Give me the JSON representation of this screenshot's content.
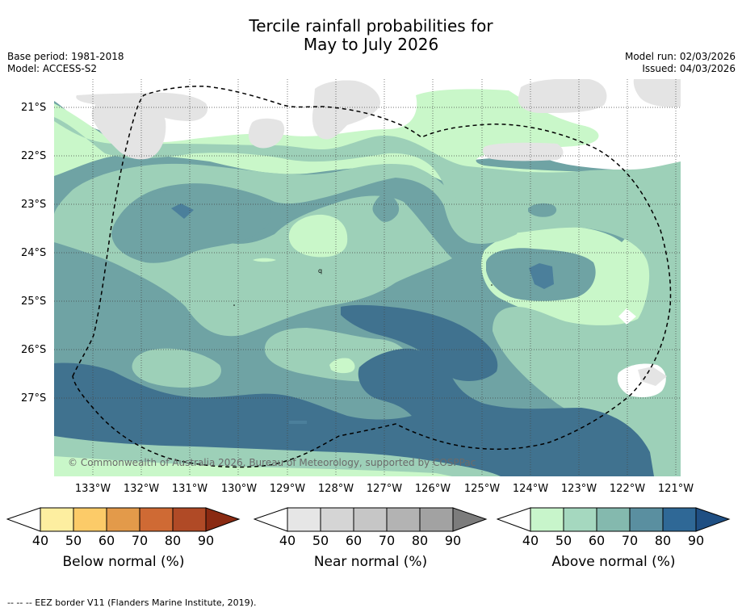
{
  "title_line1": "Tercile rainfall probabilities for",
  "title_line2": "May to July 2026",
  "left_meta": {
    "base_period": "Base period: 1981-2018",
    "model": "Model: ACCESS-S2"
  },
  "right_meta": {
    "model_run": "Model run: 02/03/2026",
    "issued": "Issued: 04/03/2026"
  },
  "map": {
    "lat_labels": [
      "21°S",
      "22°S",
      "23°S",
      "24°S",
      "25°S",
      "26°S",
      "27°S"
    ],
    "lon_labels": [
      "133°W",
      "132°W",
      "131°W",
      "130°W",
      "129°W",
      "128°W",
      "127°W",
      "126°W",
      "125°W",
      "124°W",
      "123°W",
      "122°W",
      "121°W"
    ],
    "copyright": "© Commonwealth of Australia 2026, Bureau of Meteorology, supported by COSPPac",
    "stray_label": "q",
    "colors": {
      "above_40_50": "#c9f7c9",
      "above_50_60": "#9dd0b8",
      "above_60_70": "#6fa3a4",
      "above_70_80": "#4b7f9b",
      "above_80_90": "#3f6f91",
      "near_40_50": "#e4e4e4"
    }
  },
  "colorbars": [
    {
      "title": "Below normal (%)",
      "ticks": [
        "40",
        "50",
        "60",
        "70",
        "80",
        "90"
      ],
      "colors": [
        "#fdeea0",
        "#fccb68",
        "#e39a4a",
        "#cf6a34",
        "#b04a26",
        "#8a2a12"
      ]
    },
    {
      "title": "Near normal (%)",
      "ticks": [
        "40",
        "50",
        "60",
        "70",
        "80",
        "90"
      ],
      "colors": [
        "#e6e6e6",
        "#d5d5d5",
        "#c6c6c6",
        "#b3b3b3",
        "#a2a2a2",
        "#7c7c7c"
      ]
    },
    {
      "title": "Above normal (%)",
      "ticks": [
        "40",
        "50",
        "60",
        "70",
        "80",
        "90"
      ],
      "colors": [
        "#c8f5cb",
        "#a5d8bf",
        "#84b9ae",
        "#5a8fa0",
        "#2f6896",
        "#1f4f83"
      ]
    }
  ],
  "footer": "--  --  -- EEZ border V11 (Flanders Marine Institute, 2019)."
}
